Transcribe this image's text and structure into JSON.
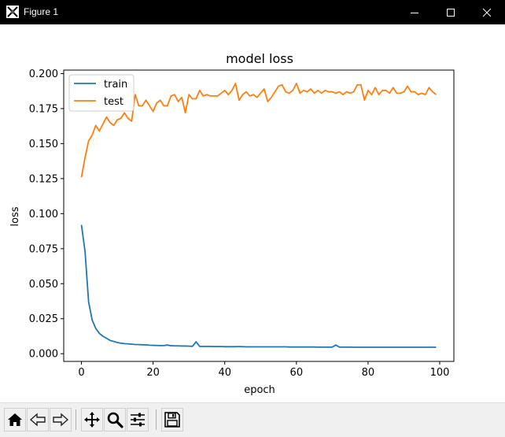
{
  "window": {
    "title": "Figure 1"
  },
  "toolbar": {
    "buttons": [
      {
        "name": "home-icon"
      },
      {
        "name": "back-icon"
      },
      {
        "name": "forward-icon"
      },
      {
        "name": "pan-icon"
      },
      {
        "name": "zoom-icon"
      },
      {
        "name": "configure-subplots-icon"
      },
      {
        "name": "save-icon"
      }
    ]
  },
  "chart_data": {
    "type": "line",
    "title": "model loss",
    "xlabel": "epoch",
    "ylabel": "loss",
    "xlim": [
      -4.95,
      103.95
    ],
    "ylim": [
      -0.0055,
      0.2025
    ],
    "xticks": [
      0,
      20,
      40,
      60,
      80,
      100
    ],
    "yticks": [
      0.0,
      0.025,
      0.05,
      0.075,
      0.1,
      0.125,
      0.15,
      0.175,
      0.2
    ],
    "ytick_labels": [
      "0.000",
      "0.025",
      "0.050",
      "0.075",
      "0.100",
      "0.125",
      "0.150",
      "0.175",
      "0.200"
    ],
    "grid": false,
    "legend": "upper left",
    "colors": {
      "train": "#1f77b4",
      "test": "#ff7f0e"
    },
    "series": [
      {
        "name": "train",
        "values": [
          0.092,
          0.073,
          0.037,
          0.024,
          0.018,
          0.0145,
          0.0125,
          0.011,
          0.0095,
          0.0088,
          0.008,
          0.0075,
          0.0072,
          0.007,
          0.0068,
          0.0066,
          0.0065,
          0.0064,
          0.0063,
          0.0061,
          0.006,
          0.0059,
          0.0058,
          0.0058,
          0.0062,
          0.0057,
          0.0056,
          0.0056,
          0.0055,
          0.0055,
          0.0054,
          0.0053,
          0.0085,
          0.0052,
          0.0052,
          0.0052,
          0.0052,
          0.0051,
          0.0051,
          0.0051,
          0.005,
          0.005,
          0.005,
          0.005,
          0.0051,
          0.005,
          0.0049,
          0.0049,
          0.0049,
          0.0049,
          0.0049,
          0.0049,
          0.0049,
          0.0049,
          0.0049,
          0.0049,
          0.0049,
          0.0049,
          0.0048,
          0.0048,
          0.0048,
          0.0048,
          0.0048,
          0.0048,
          0.0048,
          0.0048,
          0.0047,
          0.0047,
          0.0047,
          0.0047,
          0.0047,
          0.0062,
          0.0047,
          0.0047,
          0.0047,
          0.0047,
          0.0046,
          0.0046,
          0.0046,
          0.0046,
          0.0046,
          0.0046,
          0.0046,
          0.0046,
          0.0046,
          0.0046,
          0.0046,
          0.0046,
          0.0046,
          0.0046,
          0.0046,
          0.0046,
          0.0046,
          0.0046,
          0.0046,
          0.0046,
          0.0046,
          0.0046,
          0.0046,
          0.0046
        ]
      },
      {
        "name": "test",
        "values": [
          0.126,
          0.14,
          0.152,
          0.156,
          0.163,
          0.159,
          0.164,
          0.169,
          0.165,
          0.163,
          0.167,
          0.168,
          0.172,
          0.168,
          0.166,
          0.185,
          0.177,
          0.177,
          0.181,
          0.177,
          0.173,
          0.179,
          0.181,
          0.177,
          0.177,
          0.184,
          0.185,
          0.18,
          0.183,
          0.172,
          0.185,
          0.182,
          0.182,
          0.188,
          0.184,
          0.185,
          0.184,
          0.184,
          0.184,
          0.186,
          0.188,
          0.185,
          0.188,
          0.193,
          0.181,
          0.185,
          0.187,
          0.184,
          0.185,
          0.183,
          0.186,
          0.189,
          0.18,
          0.183,
          0.187,
          0.191,
          0.192,
          0.187,
          0.186,
          0.188,
          0.193,
          0.186,
          0.188,
          0.187,
          0.189,
          0.186,
          0.188,
          0.186,
          0.188,
          0.187,
          0.187,
          0.186,
          0.187,
          0.185,
          0.187,
          0.186,
          0.187,
          0.192,
          0.192,
          0.181,
          0.188,
          0.185,
          0.19,
          0.185,
          0.188,
          0.188,
          0.186,
          0.19,
          0.186,
          0.186,
          0.187,
          0.191,
          0.187,
          0.187,
          0.185,
          0.186,
          0.185,
          0.19,
          0.187,
          0.185
        ]
      }
    ]
  }
}
